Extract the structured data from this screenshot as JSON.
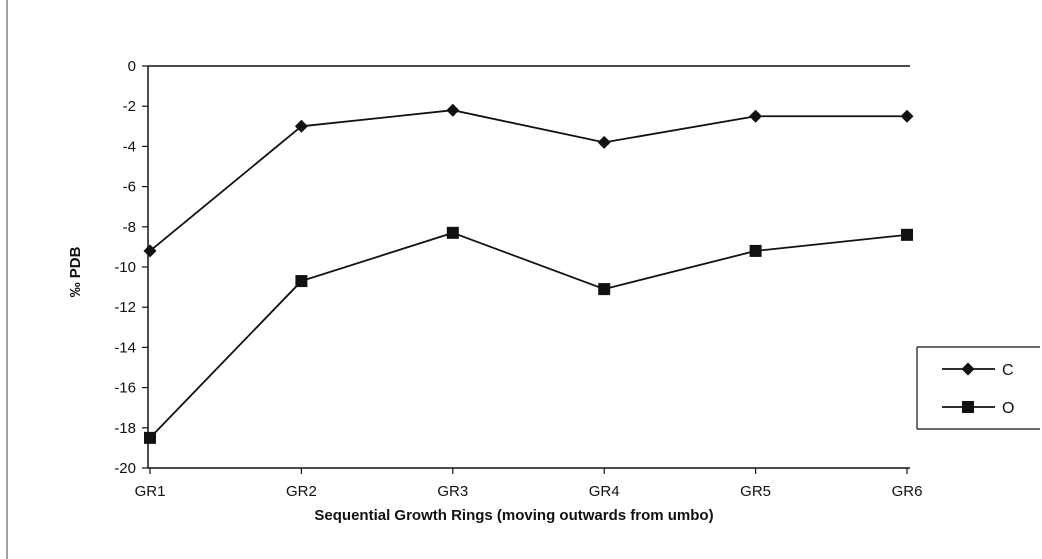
{
  "chart_data": {
    "type": "line",
    "categories": [
      "GR1",
      "GR2",
      "GR3",
      "GR4",
      "GR5",
      "GR6"
    ],
    "series": [
      {
        "name": "C",
        "values": [
          -9.2,
          -3.0,
          -2.2,
          -3.8,
          -2.5,
          -2.5
        ],
        "marker": "diamond",
        "color": "#111111"
      },
      {
        "name": "O",
        "values": [
          -18.5,
          -10.7,
          -8.3,
          -11.1,
          -9.2,
          -8.4
        ],
        "marker": "square",
        "color": "#111111"
      }
    ],
    "title": "",
    "xlabel": "Sequential Growth Rings (moving outwards from umbo)",
    "ylabel": "‰ PDB",
    "ylim": [
      -20,
      0
    ],
    "yticks": [
      "0",
      "-2",
      "-4",
      "-6",
      "-8",
      "-10",
      "-12",
      "-14",
      "-16",
      "-18",
      "-20"
    ],
    "grid": false,
    "legend_position": "right"
  }
}
